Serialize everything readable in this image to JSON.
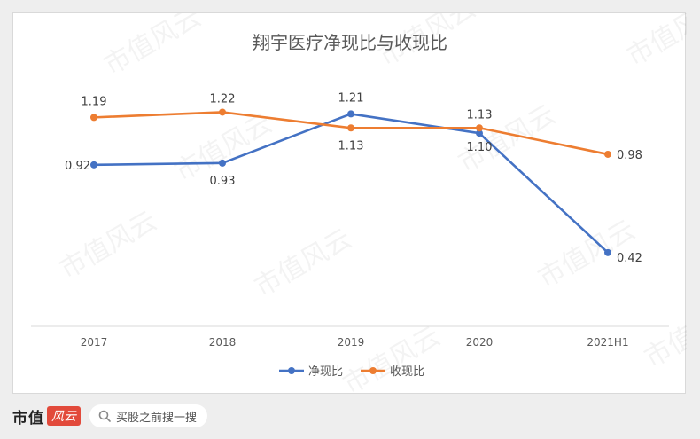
{
  "chart_data": {
    "type": "line",
    "title": "翔宇医疗净现比与收现比",
    "categories": [
      "2017",
      "2018",
      "2019",
      "2020",
      "2021H1"
    ],
    "series": [
      {
        "name": "净现比",
        "values": [
          0.92,
          0.93,
          1.21,
          1.1,
          0.42
        ],
        "labels": [
          "0.92",
          "0.93",
          "1.21",
          "1.10",
          "0.42"
        ],
        "color": "#4472c4"
      },
      {
        "name": "收现比",
        "values": [
          1.19,
          1.22,
          1.13,
          1.13,
          0.98
        ],
        "labels": [
          "1.19",
          "1.22",
          "1.13",
          "1.13",
          "0.98"
        ],
        "color": "#ed7d31"
      }
    ],
    "ylim": [
      0.0,
      1.4
    ],
    "grid": false,
    "legend_position": "bottom"
  },
  "watermark": "市值风云",
  "footer": {
    "logo_text": "市值",
    "logo_mark": "风云",
    "search_text": "买股之前搜一搜"
  },
  "colors": {
    "axis": "#d9d9d9",
    "text": "#595959"
  }
}
